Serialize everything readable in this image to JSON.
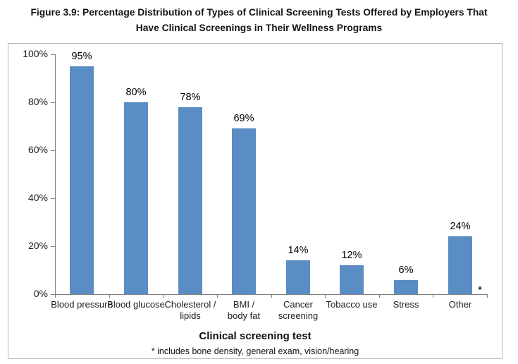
{
  "figure": {
    "title_lines": [
      "Figure 3.9: Percentage Distribution of Types of Clinical Screening Tests Offered by Employers That",
      "Have Clinical Screenings in Their Wellness Programs"
    ]
  },
  "chart_data": {
    "type": "bar",
    "title": "Figure 3.9: Percentage Distribution of Types of Clinical Screening Tests Offered by Employers That Have Clinical Screenings in Their Wellness Programs",
    "categories": [
      "Blood pressure",
      "Blood glucose",
      "Cholesterol / lipids",
      "BMI / body fat",
      "Cancer screening",
      "Tobacco use",
      "Stress",
      "Other"
    ],
    "category_label_lines": [
      [
        "Blood pressure"
      ],
      [
        "Blood glucose"
      ],
      [
        "Cholesterol /",
        "lipids"
      ],
      [
        "BMI /",
        "body fat"
      ],
      [
        "Cancer",
        "screening"
      ],
      [
        "Tobacco use"
      ],
      [
        "Stress"
      ],
      [
        "Other"
      ]
    ],
    "values": [
      95,
      80,
      78,
      69,
      14,
      12,
      6,
      24
    ],
    "data_labels": [
      "95%",
      "80%",
      "78%",
      "69%",
      "14%",
      "12%",
      "6%",
      "24%"
    ],
    "xlabel": "Clinical screening test",
    "footnote": "* includes bone density, general exam, vision/hearing",
    "other_footnote_marker": "*",
    "y_tick_labels": [
      "100%",
      "80%",
      "60%",
      "40%",
      "20%",
      "0%"
    ],
    "ylim": [
      0,
      100
    ],
    "grid": false,
    "legend": "none",
    "bar_color": "#5b8dc5",
    "axis_color": "#808080",
    "label_color": "#1a1a1a"
  }
}
